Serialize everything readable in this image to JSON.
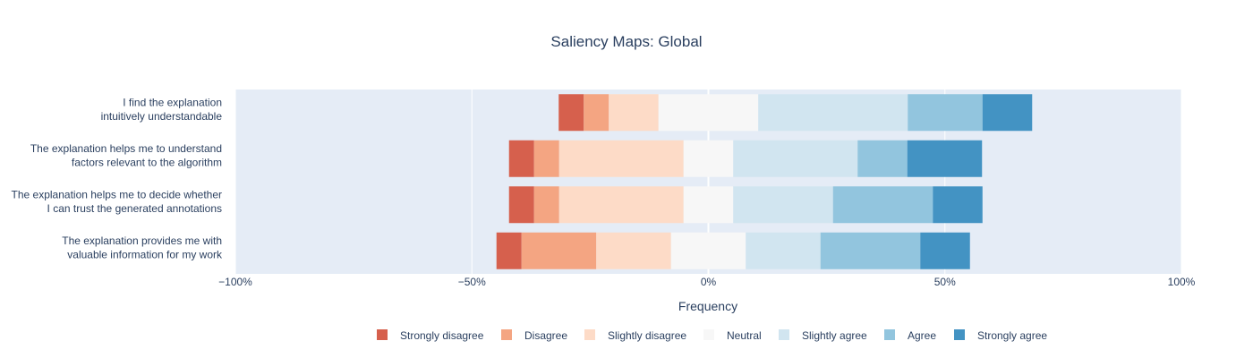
{
  "chart_data": {
    "type": "bar",
    "orientation": "horizontal",
    "barmode": "relative",
    "title": "Saliency Maps: Global",
    "xlabel": "Frequency",
    "ylabel": "",
    "xlim": [
      -100,
      100
    ],
    "xticks": [
      -100,
      -50,
      0,
      50,
      100
    ],
    "xtick_labels": [
      "−100%",
      "−50%",
      "0%",
      "50%",
      "100%"
    ],
    "grid": true,
    "legend_position": "bottom",
    "categories": [
      [
        "I find the explanation",
        "intuitively understandable"
      ],
      [
        "The explanation helps me to understand",
        "factors relevant to the algorithm"
      ],
      [
        "The explanation helps me to decide whether",
        "I can trust the generated annotations"
      ],
      [
        "The explanation provides me with",
        "valuable information for my work"
      ]
    ],
    "series": [
      {
        "name": "Strongly disagree",
        "color": "#d6604d",
        "values": [
          5.3,
          5.3,
          5.3,
          5.3
        ]
      },
      {
        "name": "Disagree",
        "color": "#f4a582",
        "values": [
          5.3,
          5.3,
          5.3,
          15.8
        ]
      },
      {
        "name": "Slightly disagree",
        "color": "#fddbc7",
        "values": [
          10.5,
          26.3,
          26.3,
          15.8
        ]
      },
      {
        "name": "Neutral",
        "color": "#f7f7f7",
        "values": [
          21.1,
          10.5,
          10.5,
          15.8
        ]
      },
      {
        "name": "Slightly agree",
        "color": "#d1e5f0",
        "values": [
          31.6,
          26.3,
          21.1,
          15.8
        ]
      },
      {
        "name": "Agree",
        "color": "#92c5de",
        "values": [
          15.8,
          10.5,
          21.1,
          21.1
        ]
      },
      {
        "name": "Strongly agree",
        "color": "#4393c3",
        "values": [
          10.5,
          15.8,
          10.5,
          10.5
        ]
      }
    ],
    "plot_background": "#e5ecf6",
    "gridline_color": "#ffffff"
  }
}
